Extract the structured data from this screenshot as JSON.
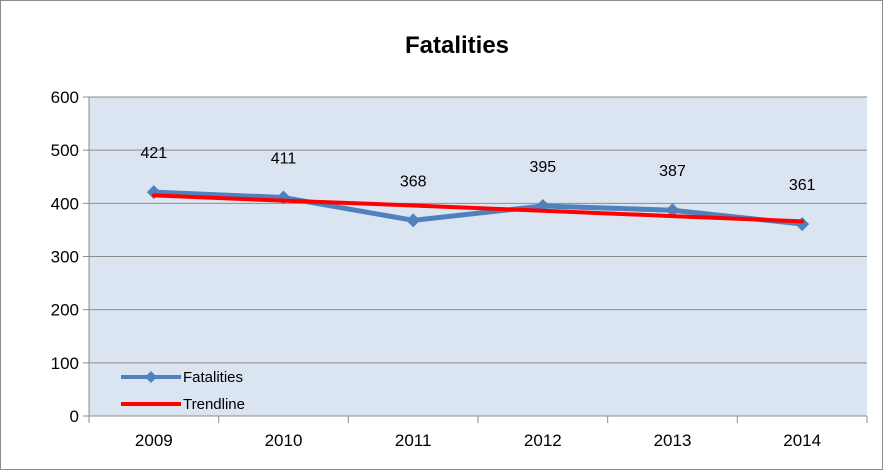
{
  "chart_data": {
    "type": "line",
    "title": "Fatalities",
    "xlabel": "",
    "ylabel": "",
    "categories": [
      "2009",
      "2010",
      "2011",
      "2012",
      "2013",
      "2014"
    ],
    "ylim": [
      0,
      600
    ],
    "yticks": [
      0,
      100,
      200,
      300,
      400,
      500,
      600
    ],
    "grid": true,
    "legend_position": "bottom-left",
    "series": [
      {
        "name": "Fatalities",
        "values": [
          421,
          411,
          368,
          395,
          387,
          361
        ],
        "color": "#4f81bd",
        "marker": "diamond",
        "data_labels": [
          "421",
          "411",
          "368",
          "395",
          "387",
          "361"
        ]
      },
      {
        "name": "Trendline",
        "values": [
          415,
          405,
          396,
          386,
          376,
          366
        ],
        "color": "#ff0000",
        "marker": "none"
      }
    ],
    "plot_background": "#dbe5f1",
    "gridline_color": "#8c8c8c"
  }
}
